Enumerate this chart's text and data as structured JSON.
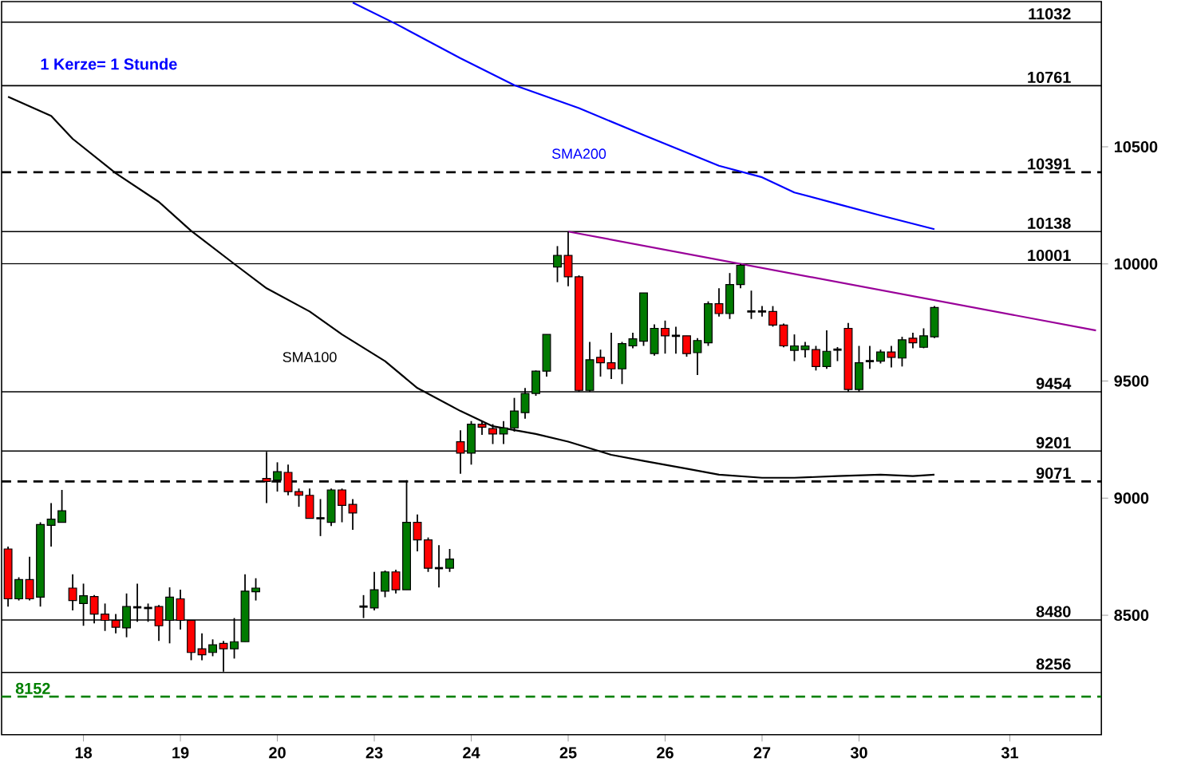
{
  "chart_data": {
    "type": "candlestick",
    "categories": [
      null,
      null,
      null,
      null,
      null,
      null,
      null,
      "18",
      null,
      null,
      null,
      null,
      null,
      null,
      null,
      null,
      "19",
      null,
      null,
      null,
      null,
      null,
      null,
      null,
      null,
      "20",
      null,
      null,
      null,
      null,
      null,
      null,
      null,
      null,
      "23",
      null,
      null,
      null,
      null,
      null,
      null,
      null,
      null,
      "24",
      null,
      null,
      null,
      null,
      null,
      null,
      null,
      null,
      "25",
      null,
      null,
      null,
      null,
      null,
      null,
      null,
      null,
      "26",
      null,
      null,
      null,
      null,
      null,
      null,
      null,
      null,
      "27",
      null,
      null,
      null,
      null,
      null,
      null,
      null,
      null,
      "30",
      null,
      null,
      null,
      null,
      null,
      null,
      null,
      null,
      null,
      null,
      null,
      null,
      null,
      "31",
      null,
      null,
      null,
      null,
      null,
      null,
      null,
      null
    ],
    "ohlc": [
      [
        8783,
        8793,
        8537,
        8570
      ],
      [
        8570,
        8662,
        8563,
        8652
      ],
      [
        8652,
        8750,
        8563,
        8570
      ],
      [
        8577,
        8897,
        8537,
        8887
      ],
      [
        8884,
        8979,
        8793,
        8910
      ],
      [
        8897,
        9035,
        8897,
        8946
      ],
      [
        8616,
        8675,
        8521,
        8563
      ],
      [
        8550,
        8635,
        8455,
        8583
      ],
      [
        8580,
        8586,
        8465,
        8505
      ],
      [
        8505,
        8550,
        8433,
        8478
      ],
      [
        8478,
        8505,
        8423,
        8449
      ],
      [
        8446,
        8593,
        8406,
        8537
      ],
      [
        8534,
        8635,
        8472,
        8534
      ],
      [
        8531,
        8550,
        8472,
        8531
      ],
      [
        8537,
        8544,
        8390,
        8455
      ],
      [
        8478,
        8619,
        8380,
        8577
      ],
      [
        8570,
        8609,
        8439,
        8478
      ],
      [
        8478,
        8478,
        8308,
        8341
      ],
      [
        8357,
        8423,
        8308,
        8331
      ],
      [
        8341,
        8397,
        8325,
        8374
      ],
      [
        8380,
        8390,
        8259,
        8357
      ],
      [
        8357,
        8488,
        8315,
        8387
      ],
      [
        8387,
        8675,
        8387,
        8603
      ],
      [
        8600,
        8658,
        8563,
        8616
      ],
      [
        9084,
        9198,
        8979,
        9071
      ],
      [
        9077,
        9153,
        9028,
        9113
      ],
      [
        9110,
        9143,
        9012,
        9028
      ],
      [
        9028,
        9041,
        8963,
        9012
      ],
      [
        9012,
        9041,
        8914,
        8914
      ],
      [
        8914,
        8996,
        8838,
        8914
      ],
      [
        8897,
        9041,
        8881,
        9035
      ],
      [
        9035,
        9041,
        8897,
        8969
      ],
      [
        8973,
        8996,
        8865,
        8937
      ],
      [
        8537,
        8586,
        8488,
        8537
      ],
      [
        8531,
        8685,
        8521,
        8609
      ],
      [
        8603,
        8691,
        8577,
        8685
      ],
      [
        8685,
        8694,
        8593,
        8609
      ],
      [
        8609,
        9077,
        8609,
        8897
      ],
      [
        8897,
        8930,
        8773,
        8822
      ],
      [
        8822,
        8832,
        8685,
        8701
      ],
      [
        8701,
        8799,
        8619,
        8701
      ],
      [
        8701,
        8783,
        8685,
        8740
      ],
      [
        9241,
        9290,
        9104,
        9192
      ],
      [
        9192,
        9329,
        9143,
        9316
      ],
      [
        9316,
        9329,
        9270,
        9303
      ],
      [
        9297,
        9316,
        9231,
        9274
      ],
      [
        9274,
        9329,
        9231,
        9300
      ],
      [
        9300,
        9428,
        9284,
        9372
      ],
      [
        9365,
        9470,
        9339,
        9447
      ],
      [
        9447,
        9545,
        9437,
        9542
      ],
      [
        9542,
        9699,
        9519,
        9699
      ],
      [
        9987,
        10076,
        9922,
        10036
      ],
      [
        10036,
        10138,
        9905,
        9945
      ],
      [
        9945,
        9951,
        9454,
        9460
      ],
      [
        9460,
        9667,
        9454,
        9591
      ],
      [
        9601,
        9634,
        9519,
        9578
      ],
      [
        9578,
        9706,
        9509,
        9552
      ],
      [
        9552,
        9667,
        9487,
        9660
      ],
      [
        9650,
        9706,
        9640,
        9680
      ],
      [
        9670,
        9876,
        9650,
        9876
      ],
      [
        9617,
        9742,
        9608,
        9725
      ],
      [
        9725,
        9758,
        9617,
        9693
      ],
      [
        9693,
        9732,
        9617,
        9693
      ],
      [
        9693,
        9693,
        9604,
        9617
      ],
      [
        9621,
        9683,
        9526,
        9673
      ],
      [
        9663,
        9840,
        9650,
        9830
      ],
      [
        9830,
        9896,
        9775,
        9788
      ],
      [
        9788,
        9961,
        9765,
        9912
      ],
      [
        9912,
        10000,
        9896,
        9994
      ],
      [
        9797,
        9886,
        9765,
        9797
      ],
      [
        9797,
        9820,
        9775,
        9797
      ],
      [
        9797,
        9820,
        9732,
        9739
      ],
      [
        9739,
        9745,
        9644,
        9650
      ],
      [
        9631,
        9699,
        9585,
        9650
      ],
      [
        9634,
        9667,
        9601,
        9650
      ],
      [
        9634,
        9650,
        9545,
        9562
      ],
      [
        9562,
        9716,
        9552,
        9627
      ],
      [
        9634,
        9645,
        9585,
        9634
      ],
      [
        9725,
        9748,
        9454,
        9464
      ],
      [
        9464,
        9650,
        9454,
        9578
      ],
      [
        9585,
        9650,
        9552,
        9585
      ],
      [
        9585,
        9634,
        9575,
        9624
      ],
      [
        9624,
        9650,
        9558,
        9601
      ],
      [
        9598,
        9689,
        9562,
        9676
      ],
      [
        9683,
        9706,
        9640,
        9663
      ],
      [
        9644,
        9725,
        9640,
        9693
      ],
      [
        9689,
        9820,
        9683,
        9814
      ],
      null,
      null,
      null,
      null,
      null,
      null,
      null,
      null,
      null,
      null,
      null,
      null,
      null,
      null,
      null
    ],
    "series": [
      {
        "type": "line",
        "name": "SMA100",
        "color": "#000000",
        "values": [
          10714,
          null,
          null,
          null,
          10632,
          null,
          10534,
          null,
          null,
          null,
          10387,
          null,
          null,
          null,
          10265,
          null,
          null,
          10141,
          null,
          null,
          null,
          10000,
          null,
          null,
          9896,
          null,
          null,
          null,
          9797,
          null,
          null,
          9699,
          null,
          null,
          null,
          9585,
          null,
          null,
          9470,
          null,
          null,
          null,
          9372,
          null,
          null,
          9307,
          null,
          null,
          null,
          9274,
          null,
          null,
          9241,
          null,
          null,
          null,
          9185,
          null,
          null,
          9159,
          null,
          null,
          null,
          9126,
          null,
          null,
          9100,
          null,
          null,
          null,
          9087,
          null,
          null,
          9087,
          null,
          null,
          null,
          9094,
          null,
          null,
          null,
          9100,
          null,
          null,
          9094,
          null,
          9100,
          null,
          null,
          null,
          null,
          null,
          null,
          null,
          null,
          null,
          null,
          null,
          null,
          null,
          null,
          null
        ]
      },
      {
        "type": "line",
        "name": "SMA200",
        "color": "#0000ff",
        "values": [
          null,
          null,
          null,
          null,
          null,
          null,
          null,
          null,
          null,
          null,
          null,
          null,
          null,
          null,
          null,
          null,
          null,
          null,
          null,
          null,
          null,
          null,
          null,
          null,
          null,
          null,
          null,
          null,
          null,
          null,
          null,
          null,
          11116,
          null,
          null,
          null,
          11025,
          null,
          null,
          null,
          null,
          null,
          10878,
          null,
          null,
          null,
          null,
          10763,
          null,
          null,
          null,
          null,
          null,
          10665,
          null,
          null,
          null,
          null,
          null,
          10550,
          null,
          null,
          null,
          null,
          null,
          null,
          10419,
          null,
          null,
          null,
          10370,
          null,
          null,
          10305,
          null,
          null,
          null,
          10256,
          null,
          null,
          null,
          10207,
          null,
          null,
          null,
          null,
          10148,
          null,
          null,
          null,
          null,
          null,
          null,
          null,
          null,
          null,
          null,
          null,
          null,
          null,
          null,
          null
        ]
      },
      {
        "type": "line",
        "color": "#990099",
        "values": [
          null,
          null,
          null,
          null,
          null,
          null,
          null,
          null,
          null,
          null,
          null,
          null,
          null,
          null,
          null,
          null,
          null,
          null,
          null,
          null,
          null,
          null,
          null,
          null,
          null,
          null,
          null,
          null,
          null,
          null,
          null,
          null,
          null,
          null,
          null,
          null,
          null,
          null,
          null,
          null,
          null,
          null,
          null,
          null,
          null,
          null,
          null,
          null,
          null,
          null,
          null,
          null,
          10138,
          null,
          null,
          null,
          null,
          null,
          null,
          null,
          null,
          null,
          null,
          null,
          null,
          null,
          null,
          null,
          null,
          null,
          null,
          null,
          null,
          null,
          null,
          null,
          null,
          null,
          null,
          null,
          null,
          null,
          null,
          null,
          null,
          null,
          null,
          null,
          null,
          null,
          null,
          null,
          null,
          null,
          null,
          null,
          null,
          null,
          null,
          null,
          null,
          9716
        ]
      }
    ],
    "ylim": [
      7990,
      11120
    ],
    "yticks": [
      8500,
      9000,
      9500,
      10000,
      10500
    ],
    "ref_lines": [
      {
        "axis": "y",
        "value": 11032,
        "label": "11032"
      },
      {
        "axis": "y",
        "value": 10761,
        "label": "10761"
      },
      {
        "axis": "y",
        "value": 10391,
        "label": "10391",
        "line_style": "dashed"
      },
      {
        "axis": "y",
        "value": 10138,
        "label": "10138"
      },
      {
        "axis": "y",
        "value": 10001,
        "label": "10001"
      },
      {
        "axis": "y",
        "value": 9454,
        "label": "9454"
      },
      {
        "axis": "y",
        "value": 9201,
        "label": "9201"
      },
      {
        "axis": "y",
        "value": 9071,
        "label": "9071",
        "line_style": "dashed"
      },
      {
        "axis": "y",
        "value": 8480,
        "label": "8480"
      },
      {
        "axis": "y",
        "value": 8256,
        "label": "8256"
      },
      {
        "axis": "y",
        "value": 8152,
        "label": "8152",
        "line_style": "dashed",
        "color": "#008000"
      }
    ],
    "annotations": [
      "1 Kerze= 1 Stunde"
    ]
  }
}
